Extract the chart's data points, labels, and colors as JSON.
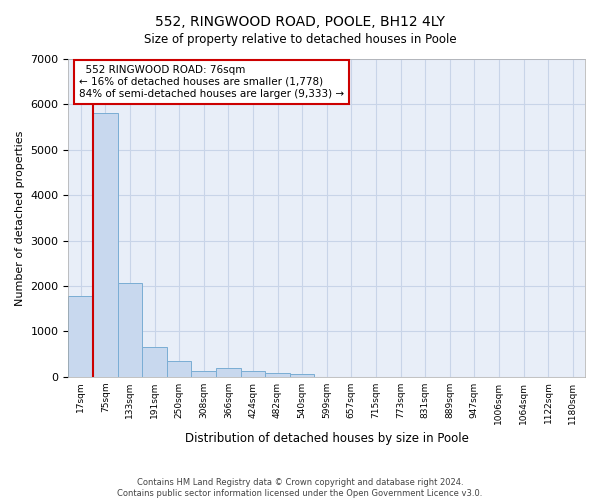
{
  "title": "552, RINGWOOD ROAD, POOLE, BH12 4LY",
  "subtitle": "Size of property relative to detached houses in Poole",
  "xlabel": "Distribution of detached houses by size in Poole",
  "ylabel": "Number of detached properties",
  "bar_color": "#c8d8ee",
  "bar_edge_color": "#7aadd4",
  "grid_color": "#c8d4e8",
  "background_color": "#e8eef8",
  "annotation_box_color": "#cc0000",
  "vline_color": "#cc0000",
  "bin_labels": [
    "17sqm",
    "75sqm",
    "133sqm",
    "191sqm",
    "250sqm",
    "308sqm",
    "366sqm",
    "424sqm",
    "482sqm",
    "540sqm",
    "599sqm",
    "657sqm",
    "715sqm",
    "773sqm",
    "831sqm",
    "889sqm",
    "947sqm",
    "1006sqm",
    "1064sqm",
    "1122sqm",
    "1180sqm"
  ],
  "bar_values": [
    1778,
    5800,
    2060,
    660,
    340,
    120,
    200,
    120,
    80,
    70,
    0,
    0,
    0,
    0,
    0,
    0,
    0,
    0,
    0,
    0,
    0
  ],
  "ylim": [
    0,
    7000
  ],
  "yticks": [
    0,
    1000,
    2000,
    3000,
    4000,
    5000,
    6000,
    7000
  ],
  "property_label": "552 RINGWOOD ROAD: 76sqm",
  "pct_smaller": 16,
  "n_smaller": 1778,
  "pct_larger_semi": 84,
  "n_larger_semi": 9333,
  "footer_line1": "Contains HM Land Registry data © Crown copyright and database right 2024.",
  "footer_line2": "Contains public sector information licensed under the Open Government Licence v3.0."
}
